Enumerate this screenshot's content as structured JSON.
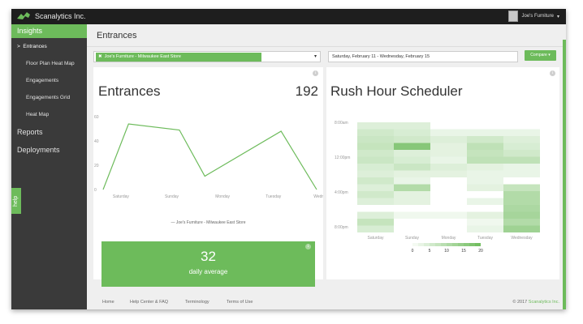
{
  "app": {
    "brand": "Scanalytics Inc.",
    "user": "Joe's Furniture"
  },
  "sidebar": {
    "section": "Insights",
    "items": [
      {
        "label": "Entrances",
        "prefix": ">"
      },
      {
        "label": "Floor Plan Heat Map"
      },
      {
        "label": "Engagements"
      },
      {
        "label": "Engagements Grid"
      },
      {
        "label": "Heat Map"
      }
    ],
    "top_items": [
      "Reports",
      "Deployments"
    ],
    "help": "help"
  },
  "page": {
    "title": "Entrances"
  },
  "filters": {
    "store": "Joe's Furniture  -  Milwaukee East Store",
    "remove_icon": "✖",
    "caret": "▾",
    "date_range": "Saturday, February 11  -  Wednesday, February 15",
    "compare_label": "Compare  ▾"
  },
  "entrances": {
    "label": "Entrances",
    "total": "192",
    "info": "i",
    "legend": "—  Joe's Furniture  -  Milwaukee East Store",
    "avg_value": "32",
    "avg_label": "daily average"
  },
  "rush": {
    "title": "Rush Hour Scheduler",
    "info": "i"
  },
  "chart_data": [
    {
      "type": "line",
      "categories": [
        "Saturday",
        "Sunday",
        "Monday",
        "Tuesday",
        "Wednesday"
      ],
      "x_half_steps": [
        0,
        0.5,
        1,
        1.5,
        2,
        2.5,
        3,
        3.5,
        4
      ],
      "series": [
        {
          "name": "Joe's Furniture - Milwaukee East Store",
          "x": [
            0,
            0.5,
            1.5,
            2.0,
            3.5,
            4.2
          ],
          "y": [
            0,
            54,
            49,
            11,
            48,
            0
          ]
        }
      ],
      "y_ticks": [
        "0",
        "20",
        "40",
        "60"
      ],
      "ylim": [
        0,
        60
      ],
      "color": "#6dbb5b"
    },
    {
      "type": "heatmap",
      "title": "Rush Hour Scheduler",
      "columns": [
        "Saturday",
        "Sunday",
        "Monday",
        "Tuesday",
        "Wednesday"
      ],
      "row_labels": [
        "8:00am",
        "12:00pm",
        "4:00pm",
        "8:00pm"
      ],
      "scale": [
        "0",
        "5",
        "10",
        "15",
        "20"
      ],
      "values": [
        [
          4,
          4,
          0,
          0,
          0
        ],
        [
          6,
          5,
          2,
          2,
          2
        ],
        [
          7,
          6,
          4,
          6,
          4
        ],
        [
          8,
          18,
          3,
          9,
          5
        ],
        [
          6,
          4,
          3,
          8,
          6
        ],
        [
          7,
          5,
          2,
          9,
          9
        ],
        [
          5,
          7,
          4,
          3,
          2
        ],
        [
          4,
          3,
          3,
          2,
          2
        ],
        [
          6,
          2,
          0,
          2,
          0
        ],
        [
          4,
          11,
          0,
          3,
          8
        ],
        [
          6,
          3,
          0,
          0,
          11
        ],
        [
          4,
          3,
          0,
          2,
          11
        ],
        [
          0,
          0,
          0,
          0,
          12
        ],
        [
          4,
          1,
          1,
          3,
          13
        ],
        [
          8,
          0,
          0,
          1,
          11
        ],
        [
          5,
          0,
          0,
          2,
          14
        ]
      ],
      "color": "#6dbb5b"
    }
  ],
  "footer": {
    "links": [
      "Home",
      "Help Center & FAQ",
      "Terminology",
      "Terms of Use"
    ],
    "copyright": "© 2017",
    "company": "Scanalytics Inc."
  }
}
